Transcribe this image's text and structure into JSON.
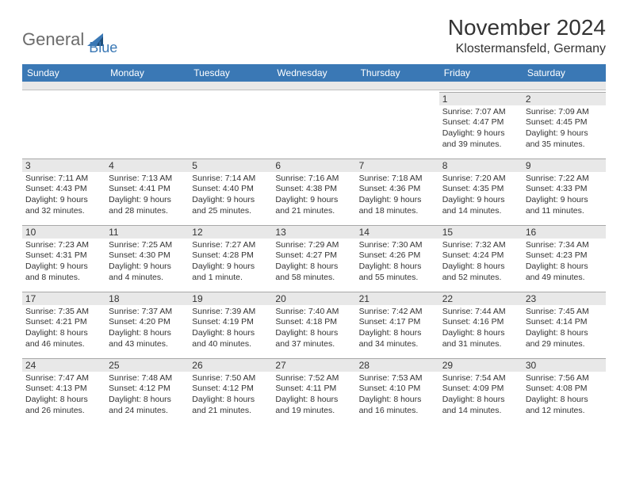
{
  "logo": {
    "general": "General",
    "blue": "Blue"
  },
  "title": "November 2024",
  "location": "Klostermansfeld, Germany",
  "header_bg": "#3a78b5",
  "dow": [
    "Sunday",
    "Monday",
    "Tuesday",
    "Wednesday",
    "Thursday",
    "Friday",
    "Saturday"
  ],
  "weeks": [
    [
      {
        "n": "",
        "lines": []
      },
      {
        "n": "",
        "lines": []
      },
      {
        "n": "",
        "lines": []
      },
      {
        "n": "",
        "lines": []
      },
      {
        "n": "",
        "lines": []
      },
      {
        "n": "1",
        "lines": [
          "Sunrise: 7:07 AM",
          "Sunset: 4:47 PM",
          "Daylight: 9 hours",
          "and 39 minutes."
        ]
      },
      {
        "n": "2",
        "lines": [
          "Sunrise: 7:09 AM",
          "Sunset: 4:45 PM",
          "Daylight: 9 hours",
          "and 35 minutes."
        ]
      }
    ],
    [
      {
        "n": "3",
        "lines": [
          "Sunrise: 7:11 AM",
          "Sunset: 4:43 PM",
          "Daylight: 9 hours",
          "and 32 minutes."
        ]
      },
      {
        "n": "4",
        "lines": [
          "Sunrise: 7:13 AM",
          "Sunset: 4:41 PM",
          "Daylight: 9 hours",
          "and 28 minutes."
        ]
      },
      {
        "n": "5",
        "lines": [
          "Sunrise: 7:14 AM",
          "Sunset: 4:40 PM",
          "Daylight: 9 hours",
          "and 25 minutes."
        ]
      },
      {
        "n": "6",
        "lines": [
          "Sunrise: 7:16 AM",
          "Sunset: 4:38 PM",
          "Daylight: 9 hours",
          "and 21 minutes."
        ]
      },
      {
        "n": "7",
        "lines": [
          "Sunrise: 7:18 AM",
          "Sunset: 4:36 PM",
          "Daylight: 9 hours",
          "and 18 minutes."
        ]
      },
      {
        "n": "8",
        "lines": [
          "Sunrise: 7:20 AM",
          "Sunset: 4:35 PM",
          "Daylight: 9 hours",
          "and 14 minutes."
        ]
      },
      {
        "n": "9",
        "lines": [
          "Sunrise: 7:22 AM",
          "Sunset: 4:33 PM",
          "Daylight: 9 hours",
          "and 11 minutes."
        ]
      }
    ],
    [
      {
        "n": "10",
        "lines": [
          "Sunrise: 7:23 AM",
          "Sunset: 4:31 PM",
          "Daylight: 9 hours",
          "and 8 minutes."
        ]
      },
      {
        "n": "11",
        "lines": [
          "Sunrise: 7:25 AM",
          "Sunset: 4:30 PM",
          "Daylight: 9 hours",
          "and 4 minutes."
        ]
      },
      {
        "n": "12",
        "lines": [
          "Sunrise: 7:27 AM",
          "Sunset: 4:28 PM",
          "Daylight: 9 hours",
          "and 1 minute."
        ]
      },
      {
        "n": "13",
        "lines": [
          "Sunrise: 7:29 AM",
          "Sunset: 4:27 PM",
          "Daylight: 8 hours",
          "and 58 minutes."
        ]
      },
      {
        "n": "14",
        "lines": [
          "Sunrise: 7:30 AM",
          "Sunset: 4:26 PM",
          "Daylight: 8 hours",
          "and 55 minutes."
        ]
      },
      {
        "n": "15",
        "lines": [
          "Sunrise: 7:32 AM",
          "Sunset: 4:24 PM",
          "Daylight: 8 hours",
          "and 52 minutes."
        ]
      },
      {
        "n": "16",
        "lines": [
          "Sunrise: 7:34 AM",
          "Sunset: 4:23 PM",
          "Daylight: 8 hours",
          "and 49 minutes."
        ]
      }
    ],
    [
      {
        "n": "17",
        "lines": [
          "Sunrise: 7:35 AM",
          "Sunset: 4:21 PM",
          "Daylight: 8 hours",
          "and 46 minutes."
        ]
      },
      {
        "n": "18",
        "lines": [
          "Sunrise: 7:37 AM",
          "Sunset: 4:20 PM",
          "Daylight: 8 hours",
          "and 43 minutes."
        ]
      },
      {
        "n": "19",
        "lines": [
          "Sunrise: 7:39 AM",
          "Sunset: 4:19 PM",
          "Daylight: 8 hours",
          "and 40 minutes."
        ]
      },
      {
        "n": "20",
        "lines": [
          "Sunrise: 7:40 AM",
          "Sunset: 4:18 PM",
          "Daylight: 8 hours",
          "and 37 minutes."
        ]
      },
      {
        "n": "21",
        "lines": [
          "Sunrise: 7:42 AM",
          "Sunset: 4:17 PM",
          "Daylight: 8 hours",
          "and 34 minutes."
        ]
      },
      {
        "n": "22",
        "lines": [
          "Sunrise: 7:44 AM",
          "Sunset: 4:16 PM",
          "Daylight: 8 hours",
          "and 31 minutes."
        ]
      },
      {
        "n": "23",
        "lines": [
          "Sunrise: 7:45 AM",
          "Sunset: 4:14 PM",
          "Daylight: 8 hours",
          "and 29 minutes."
        ]
      }
    ],
    [
      {
        "n": "24",
        "lines": [
          "Sunrise: 7:47 AM",
          "Sunset: 4:13 PM",
          "Daylight: 8 hours",
          "and 26 minutes."
        ]
      },
      {
        "n": "25",
        "lines": [
          "Sunrise: 7:48 AM",
          "Sunset: 4:12 PM",
          "Daylight: 8 hours",
          "and 24 minutes."
        ]
      },
      {
        "n": "26",
        "lines": [
          "Sunrise: 7:50 AM",
          "Sunset: 4:12 PM",
          "Daylight: 8 hours",
          "and 21 minutes."
        ]
      },
      {
        "n": "27",
        "lines": [
          "Sunrise: 7:52 AM",
          "Sunset: 4:11 PM",
          "Daylight: 8 hours",
          "and 19 minutes."
        ]
      },
      {
        "n": "28",
        "lines": [
          "Sunrise: 7:53 AM",
          "Sunset: 4:10 PM",
          "Daylight: 8 hours",
          "and 16 minutes."
        ]
      },
      {
        "n": "29",
        "lines": [
          "Sunrise: 7:54 AM",
          "Sunset: 4:09 PM",
          "Daylight: 8 hours",
          "and 14 minutes."
        ]
      },
      {
        "n": "30",
        "lines": [
          "Sunrise: 7:56 AM",
          "Sunset: 4:08 PM",
          "Daylight: 8 hours",
          "and 12 minutes."
        ]
      }
    ]
  ]
}
